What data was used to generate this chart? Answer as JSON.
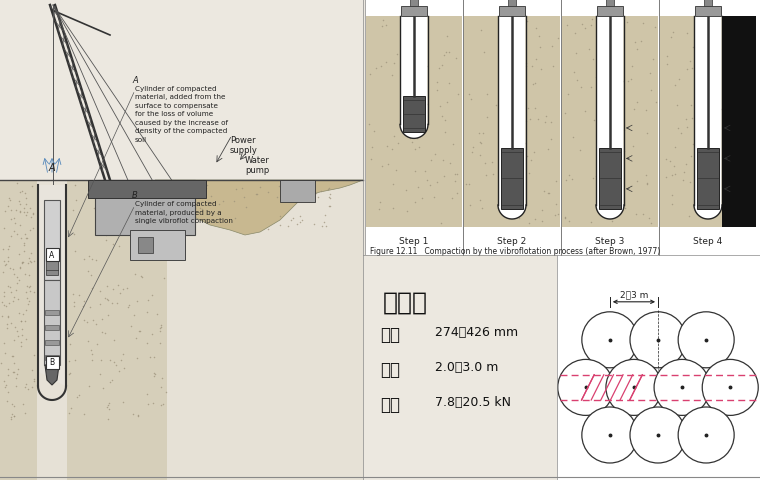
{
  "bg_color": "#ece8e0",
  "left_bg": "#e8e4db",
  "panel_bg": "#e0dbd0",
  "white": "#ffffff",
  "black": "#111111",
  "soil_color": "#c8bfa0",
  "soil_dot": "#9a8f78",
  "crane_dark": "#555555",
  "crane_light": "#aaaaaa",
  "tube_color": "#cccccc",
  "probe_color": "#444444",
  "top_right_bg": "#ddd8cc",
  "step_labels": [
    "Step 1",
    "Step 2",
    "Step 3",
    "Step 4"
  ],
  "caption": "Figure 12.11   Compaction by the vibroflotation process (after Brown, 1977)",
  "zh_title": "振冲器",
  "specs": [
    [
      "外径",
      "274～426 mm"
    ],
    [
      "长度",
      "2.0～3.0 m"
    ],
    [
      "重量",
      "7.8～20.5 kN"
    ]
  ],
  "dim_label": "2～3 m",
  "power_label": "Power\nsupply",
  "water_label": "Water\npump",
  "label_A_title": "A",
  "label_A_text": "Cylinder of compacted\nmaterial, added from the\nsurface to compensate\nfor the loss of volume\ncaused by the increase of\ndensity of the compacted\nsoil",
  "label_B_title": "B",
  "label_B_text": "Cylinder of compacted\nmaterial, produced by a\nsingle vibroflot compaction",
  "pink": "#d94070",
  "circle_r": 28,
  "circle_ec": "#333333"
}
